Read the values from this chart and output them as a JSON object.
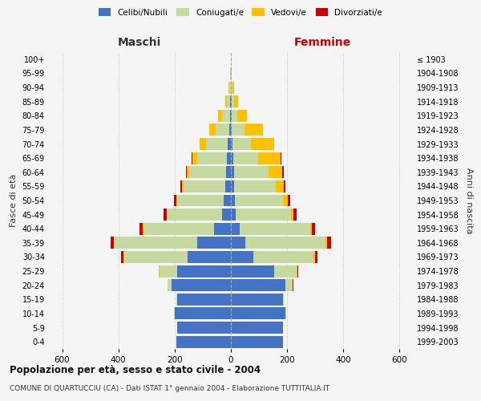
{
  "age_groups": [
    "0-4",
    "5-9",
    "10-14",
    "15-19",
    "20-24",
    "25-29",
    "30-34",
    "35-39",
    "40-44",
    "45-49",
    "50-54",
    "55-59",
    "60-64",
    "65-69",
    "70-74",
    "75-79",
    "80-84",
    "85-89",
    "90-94",
    "95-99",
    "100+"
  ],
  "birth_years": [
    "1999-2003",
    "1994-1998",
    "1989-1993",
    "1984-1988",
    "1979-1983",
    "1974-1978",
    "1969-1973",
    "1964-1968",
    "1959-1963",
    "1954-1958",
    "1949-1953",
    "1944-1948",
    "1939-1943",
    "1934-1938",
    "1929-1933",
    "1924-1928",
    "1919-1923",
    "1914-1918",
    "1909-1913",
    "1904-1908",
    "≤ 1903"
  ],
  "male": {
    "celibi": [
      195,
      190,
      200,
      190,
      210,
      190,
      155,
      120,
      60,
      32,
      25,
      20,
      18,
      14,
      10,
      5,
      3,
      2,
      1,
      1,
      0
    ],
    "coniugati": [
      0,
      1,
      2,
      3,
      15,
      65,
      225,
      295,
      250,
      195,
      165,
      148,
      130,
      105,
      78,
      50,
      28,
      12,
      4,
      2,
      0
    ],
    "vedovi": [
      0,
      0,
      0,
      0,
      0,
      1,
      2,
      2,
      3,
      2,
      3,
      5,
      8,
      18,
      22,
      22,
      15,
      6,
      3,
      1,
      0
    ],
    "divorziati": [
      0,
      0,
      0,
      0,
      1,
      2,
      8,
      10,
      12,
      10,
      8,
      6,
      5,
      3,
      2,
      0,
      0,
      0,
      0,
      0,
      0
    ]
  },
  "female": {
    "nubili": [
      185,
      185,
      195,
      185,
      195,
      155,
      80,
      52,
      32,
      18,
      15,
      12,
      10,
      8,
      6,
      4,
      2,
      2,
      1,
      1,
      0
    ],
    "coniugate": [
      0,
      1,
      2,
      4,
      25,
      80,
      215,
      285,
      250,
      195,
      170,
      148,
      125,
      90,
      65,
      45,
      22,
      10,
      4,
      1,
      0
    ],
    "vedove": [
      0,
      0,
      0,
      0,
      0,
      2,
      3,
      5,
      5,
      10,
      18,
      28,
      48,
      78,
      82,
      65,
      32,
      14,
      5,
      2,
      0
    ],
    "divorziate": [
      0,
      0,
      0,
      0,
      1,
      2,
      10,
      15,
      12,
      10,
      8,
      6,
      5,
      3,
      2,
      1,
      1,
      0,
      0,
      0,
      0
    ]
  },
  "colors": {
    "celibi_nubili": "#4472c4",
    "coniugati": "#c5d9a0",
    "vedovi": "#ffc000",
    "divorziati": "#cc0000"
  },
  "xlim": 650,
  "title": "Popolazione per età, sesso e stato civile - 2004",
  "subtitle": "COMUNE DI QUARTUCCIU (CA) - Dati ISTAT 1° gennaio 2004 - Elaborazione TUTTITALIA.IT",
  "ylabel": "Fasce di età",
  "ylabel_right": "Anni di nascita",
  "xlabel_maschi": "Maschi",
  "xlabel_femmine": "Femmine",
  "maschi_color": "#333333",
  "femmine_color": "#cc0000",
  "bg_color": "#f5f5f5",
  "grid_color": "#bbbbbb"
}
